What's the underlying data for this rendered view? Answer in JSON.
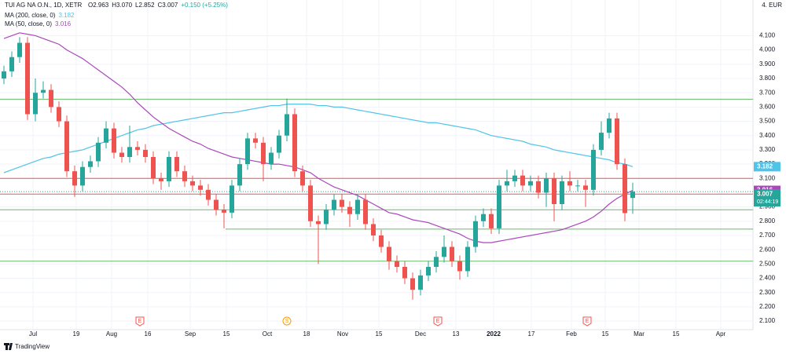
{
  "chart_data": {
    "type": "candlestick",
    "title": "TUI AG NA O.N., 1D, XETR",
    "ohlc_header": [
      "O2.963",
      "H3.070",
      "L2.852",
      "C3.007",
      "+0.150 (+5.25%)"
    ],
    "currency": "4. EUR",
    "countdown": "02:44:19",
    "brand": "TradingView",
    "up_color": "#26a69a",
    "down_color": "#ef5350",
    "open": [
      3.8,
      3.85,
      3.95,
      4.05,
      3.55,
      3.7,
      3.72,
      3.6,
      3.5,
      3.15,
      3.05,
      3.18,
      3.22,
      3.35,
      3.45,
      3.28,
      3.25,
      3.32,
      3.3,
      3.25,
      3.1,
      3.08,
      3.25,
      3.15,
      3.08,
      3.05,
      3.02,
      2.95,
      2.88,
      2.86,
      3.05,
      3.2,
      3.38,
      3.35,
      3.2,
      3.28,
      3.4,
      3.55,
      3.15,
      3.05,
      2.8,
      2.78,
      2.88,
      2.95,
      2.9,
      2.85,
      2.95,
      2.78,
      2.7,
      2.62,
      2.52,
      2.48,
      2.4,
      2.32,
      2.42,
      2.48,
      2.55,
      2.62,
      2.52,
      2.45,
      2.62,
      2.8,
      2.85,
      2.75,
      3.05,
      3.08,
      3.12,
      3.05,
      3.08,
      3.0,
      3.1,
      2.92,
      3.08,
      3.05,
      3.05,
      3.02,
      3.3,
      3.42,
      3.52,
      3.2,
      2.963
    ],
    "high": [
      3.89,
      3.99,
      4.09,
      4.09,
      3.8,
      3.78,
      3.76,
      3.64,
      3.54,
      3.19,
      3.22,
      3.26,
      3.39,
      3.5,
      3.49,
      3.32,
      3.47,
      3.36,
      3.34,
      3.29,
      3.14,
      3.29,
      3.29,
      3.19,
      3.12,
      3.09,
      3.06,
      2.99,
      2.92,
      3.09,
      3.24,
      3.42,
      3.42,
      3.39,
      3.32,
      3.44,
      3.66,
      3.59,
      3.19,
      3.09,
      2.84,
      2.92,
      2.99,
      2.99,
      2.94,
      2.99,
      2.99,
      2.82,
      2.74,
      2.66,
      2.56,
      2.52,
      2.44,
      2.46,
      2.52,
      2.59,
      2.7,
      2.66,
      2.56,
      2.66,
      2.84,
      2.89,
      2.89,
      3.09,
      3.16,
      3.16,
      3.16,
      3.12,
      3.12,
      3.14,
      3.14,
      3.12,
      3.15,
      3.09,
      3.09,
      3.34,
      3.5,
      3.56,
      3.56,
      3.24,
      3.07
    ],
    "low": [
      3.76,
      3.81,
      3.91,
      3.51,
      3.5,
      3.66,
      3.56,
      3.46,
      3.11,
      2.97,
      3.01,
      3.14,
      3.18,
      3.31,
      3.24,
      3.21,
      3.21,
      3.26,
      3.21,
      3.06,
      3.02,
      3.04,
      3.11,
      3.04,
      3.01,
      2.98,
      2.91,
      2.84,
      2.75,
      2.82,
      3.01,
      3.16,
      3.31,
      3.08,
      3.16,
      3.24,
      3.36,
      3.11,
      3.01,
      2.76,
      2.5,
      2.74,
      2.84,
      2.86,
      2.76,
      2.81,
      2.74,
      2.66,
      2.58,
      2.46,
      2.44,
      2.36,
      2.25,
      2.28,
      2.38,
      2.44,
      2.51,
      2.48,
      2.39,
      2.41,
      2.58,
      2.76,
      2.71,
      2.71,
      3.01,
      3.04,
      3.01,
      3.01,
      2.96,
      2.9,
      2.8,
      2.88,
      3.01,
      3.01,
      2.9,
      2.98,
      3.26,
      3.38,
      3.16,
      2.8,
      2.852
    ],
    "close": [
      3.85,
      3.95,
      4.05,
      3.55,
      3.7,
      3.72,
      3.6,
      3.5,
      3.15,
      3.05,
      3.18,
      3.22,
      3.35,
      3.45,
      3.28,
      3.25,
      3.32,
      3.3,
      3.25,
      3.1,
      3.08,
      3.25,
      3.15,
      3.08,
      3.05,
      3.02,
      2.95,
      2.88,
      2.86,
      3.05,
      3.2,
      3.38,
      3.35,
      3.2,
      3.28,
      3.4,
      3.55,
      3.15,
      3.05,
      2.8,
      2.78,
      2.88,
      2.95,
      2.9,
      2.85,
      2.95,
      2.78,
      2.7,
      2.62,
      2.52,
      2.48,
      2.4,
      2.32,
      2.42,
      2.48,
      2.55,
      2.62,
      2.52,
      2.45,
      2.62,
      2.8,
      2.85,
      2.75,
      3.05,
      3.08,
      3.12,
      3.05,
      3.08,
      3.0,
      3.1,
      2.92,
      3.08,
      3.05,
      3.05,
      3.02,
      3.3,
      3.42,
      3.52,
      3.2,
      2.857,
      3.007
    ],
    "series": [
      {
        "name": "MA (200, close, 0)",
        "last_label": "3.182",
        "color": "#4fc3e8",
        "values": [
          3.14,
          3.16,
          3.18,
          3.2,
          3.22,
          3.24,
          3.25,
          3.27,
          3.28,
          3.29,
          3.3,
          3.32,
          3.34,
          3.36,
          3.38,
          3.4,
          3.42,
          3.44,
          3.45,
          3.47,
          3.48,
          3.49,
          3.5,
          3.51,
          3.52,
          3.53,
          3.54,
          3.55,
          3.56,
          3.56,
          3.57,
          3.58,
          3.59,
          3.6,
          3.61,
          3.61,
          3.62,
          3.62,
          3.62,
          3.62,
          3.61,
          3.61,
          3.6,
          3.6,
          3.59,
          3.58,
          3.57,
          3.56,
          3.55,
          3.54,
          3.53,
          3.52,
          3.51,
          3.5,
          3.49,
          3.49,
          3.48,
          3.47,
          3.46,
          3.45,
          3.44,
          3.42,
          3.4,
          3.39,
          3.38,
          3.37,
          3.36,
          3.34,
          3.33,
          3.32,
          3.3,
          3.29,
          3.28,
          3.27,
          3.26,
          3.25,
          3.24,
          3.23,
          3.21,
          3.2,
          3.182
        ]
      },
      {
        "name": "MA (50, close, 0)",
        "last_label": "3.016",
        "color": "#ab47bc",
        "values": [
          4.08,
          4.1,
          4.12,
          4.11,
          4.1,
          4.08,
          4.06,
          4.04,
          4.0,
          3.97,
          3.94,
          3.9,
          3.86,
          3.82,
          3.78,
          3.74,
          3.69,
          3.63,
          3.58,
          3.53,
          3.49,
          3.45,
          3.42,
          3.39,
          3.36,
          3.34,
          3.31,
          3.29,
          3.27,
          3.25,
          3.24,
          3.23,
          3.22,
          3.21,
          3.2,
          3.2,
          3.19,
          3.18,
          3.16,
          3.14,
          3.1,
          3.07,
          3.04,
          3.02,
          3.0,
          2.98,
          2.95,
          2.92,
          2.89,
          2.86,
          2.85,
          2.83,
          2.81,
          2.8,
          2.79,
          2.77,
          2.75,
          2.73,
          2.71,
          2.68,
          2.66,
          2.65,
          2.65,
          2.66,
          2.67,
          2.68,
          2.69,
          2.7,
          2.71,
          2.72,
          2.73,
          2.74,
          2.76,
          2.78,
          2.8,
          2.83,
          2.87,
          2.92,
          2.96,
          2.99,
          3.016
        ]
      }
    ],
    "last_price_label": "3.007",
    "levels": [
      {
        "value": 3.655,
        "color": "#66bb6a"
      },
      {
        "value": 3.1,
        "color": "#ef5350"
      },
      {
        "value": 2.99,
        "color": "#ef5350"
      },
      {
        "value": 2.88,
        "color": "#66bb6a"
      },
      {
        "value": 2.745,
        "color": "#66bb6a"
      },
      {
        "value": 2.52,
        "color": "#66bb6a"
      }
    ],
    "events": [
      "E",
      "S",
      "E",
      "E"
    ],
    "ylim": [
      2.04,
      4.35
    ],
    "yticks": [
      {
        "value": 2.1,
        "label": "2.100"
      },
      {
        "value": 2.2,
        "label": "2.200"
      },
      {
        "value": 2.3,
        "label": "2.300"
      },
      {
        "value": 2.4,
        "label": "2.400"
      },
      {
        "value": 2.5,
        "label": "2.500"
      },
      {
        "value": 2.6,
        "label": "2.600"
      },
      {
        "value": 2.7,
        "label": "2.700"
      },
      {
        "value": 2.8,
        "label": "2.800"
      },
      {
        "value": 2.9,
        "label": "2.900"
      },
      {
        "value": 3.1,
        "label": "3.100"
      },
      {
        "value": 3.2,
        "label": "3.200"
      },
      {
        "value": 3.3,
        "label": "3.300"
      },
      {
        "value": 3.4,
        "label": "3.400"
      },
      {
        "value": 3.5,
        "label": "3.500"
      },
      {
        "value": 3.6,
        "label": "3.600"
      },
      {
        "value": 3.7,
        "label": "3.700"
      },
      {
        "value": 3.8,
        "label": "3.800"
      },
      {
        "value": 3.9,
        "label": "3.900"
      },
      {
        "value": 4.0,
        "label": "4.000"
      },
      {
        "value": 4.1,
        "label": "4.100"
      }
    ],
    "xtick_labels": [
      "Jul",
      "19",
      "Aug",
      "16",
      "Sep",
      "15",
      "Oct",
      "18",
      "Nov",
      "15",
      "Dec",
      "13",
      "2022",
      "17",
      "Feb",
      "15",
      "Mar",
      "15",
      "Apr"
    ],
    "grid": true
  }
}
